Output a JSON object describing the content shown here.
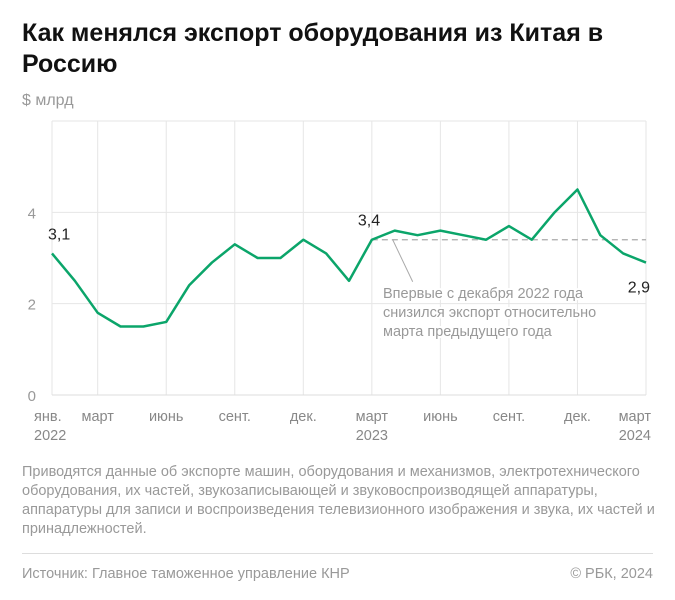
{
  "title": "Как менялся экспорт оборудования из Китая в Россию",
  "unit": "$ млрд",
  "note": "Приводятся данные об экспорте машин, оборудования и механизмов, электротехнического оборудования, их частей, звукозаписывающей и звуковоспроизводящей аппаратуры, аппаратуры для записи и воспроизведения телевизионного изображения и звука, их частей и принадлежностей.",
  "source": "Источник: Главное таможенное управление КНР",
  "copyright": "© РБК, 2024",
  "colors": {
    "line": "#0ba56a",
    "grid": "#e6e6e6",
    "reference": "#aaaaaa"
  },
  "chart_data": {
    "type": "line",
    "ylim": [
      0,
      6
    ],
    "yticks": [
      "0",
      "2",
      "4"
    ],
    "grid": true,
    "xticks": [
      {
        "index": 0,
        "label": "янв.",
        "year": "2022"
      },
      {
        "index": 2,
        "label": "март",
        "year": ""
      },
      {
        "index": 5,
        "label": "июнь",
        "year": ""
      },
      {
        "index": 8,
        "label": "сент.",
        "year": ""
      },
      {
        "index": 11,
        "label": "дек.",
        "year": ""
      },
      {
        "index": 14,
        "label": "март",
        "year": "2023"
      },
      {
        "index": 17,
        "label": "июнь",
        "year": ""
      },
      {
        "index": 20,
        "label": "сент.",
        "year": ""
      },
      {
        "index": 23,
        "label": "дек.",
        "year": ""
      },
      {
        "index": 26,
        "label": "март",
        "year": "2024"
      }
    ],
    "values": [
      3.1,
      2.5,
      1.8,
      1.5,
      1.5,
      1.6,
      2.4,
      2.9,
      3.3,
      3.0,
      3.0,
      3.4,
      3.1,
      2.5,
      3.4,
      3.6,
      3.5,
      3.6,
      3.5,
      3.4,
      3.7,
      3.4,
      4.0,
      4.5,
      3.5,
      3.1,
      2.9
    ],
    "data_labels": [
      {
        "index": 0,
        "text": "3,1"
      },
      {
        "index": 14,
        "text": "3,4"
      },
      {
        "index": 26,
        "text": "2,9"
      }
    ],
    "reference_line": {
      "value": 3.4,
      "from_index": 14,
      "to_index": 26
    },
    "annotation": [
      "Впервые с декабря 2022 года",
      "снизился экспорт относительно",
      "марта предыдущего года"
    ]
  }
}
